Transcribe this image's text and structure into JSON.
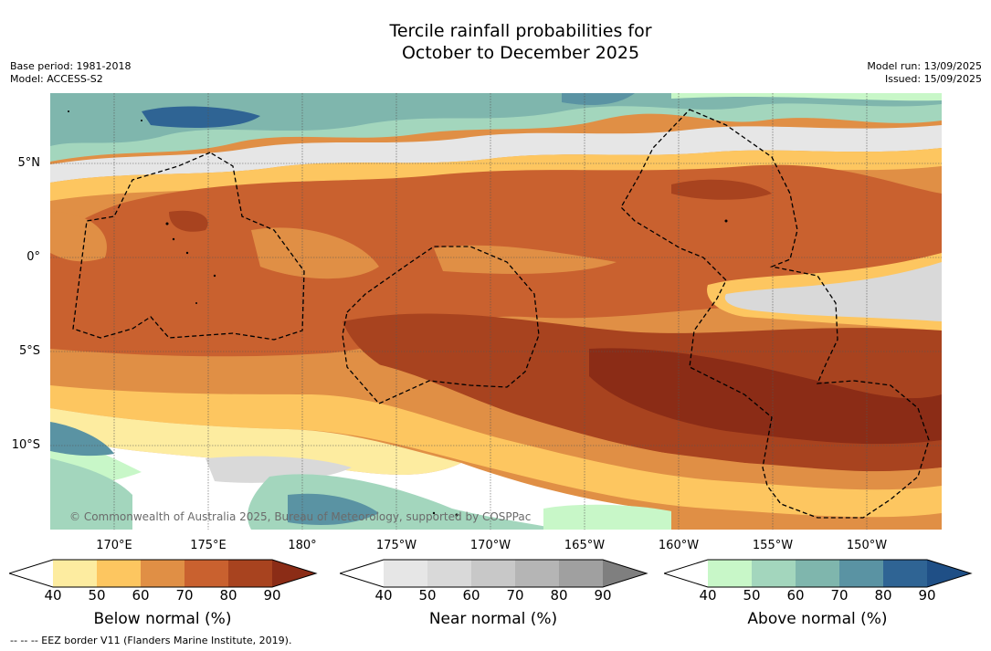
{
  "title_line1": "Tercile rainfall probabilities for",
  "title_line2": "October to December 2025",
  "base_period": "Base period: 1981-2018",
  "model": "Model: ACCESS-S2",
  "model_run": "Model run: 13/09/2025",
  "issued": "Issued: 15/09/2025",
  "lat_labels": [
    "5°N",
    "0°",
    "5°S",
    "10°S"
  ],
  "lon_labels": [
    "170°E",
    "175°E",
    "180°",
    "175°W",
    "170°W",
    "165°W",
    "160°W",
    "155°W",
    "150°W"
  ],
  "copyright": "© Commonwealth of Australia 2025, Bureau of Meteorology, supported by COSPPac",
  "eez_note": "-- -- -- EEZ border V11 (Flanders Marine Institute, 2019).",
  "colorbars": [
    {
      "title": "Below normal (%)",
      "ticks": [
        "40",
        "50",
        "60",
        "70",
        "80",
        "90"
      ],
      "colors": [
        "#ffffff",
        "#fdeca0",
        "#fdc660",
        "#e08f45",
        "#c9612f",
        "#a8431f",
        "#8b2c16"
      ]
    },
    {
      "title": "Near normal (%)",
      "ticks": [
        "40",
        "50",
        "60",
        "70",
        "80",
        "90"
      ],
      "colors": [
        "#ffffff",
        "#e6e6e6",
        "#d9d9d9",
        "#c8c8c8",
        "#b5b5b5",
        "#a0a0a0",
        "#7f7f7f"
      ]
    },
    {
      "title": "Above normal (%)",
      "ticks": [
        "40",
        "50",
        "60",
        "70",
        "80",
        "90"
      ],
      "colors": [
        "#ffffff",
        "#c8f7c8",
        "#a3d6bd",
        "#7fb6ad",
        "#5a93a3",
        "#2f6494",
        "#1f4f86"
      ]
    }
  ]
}
